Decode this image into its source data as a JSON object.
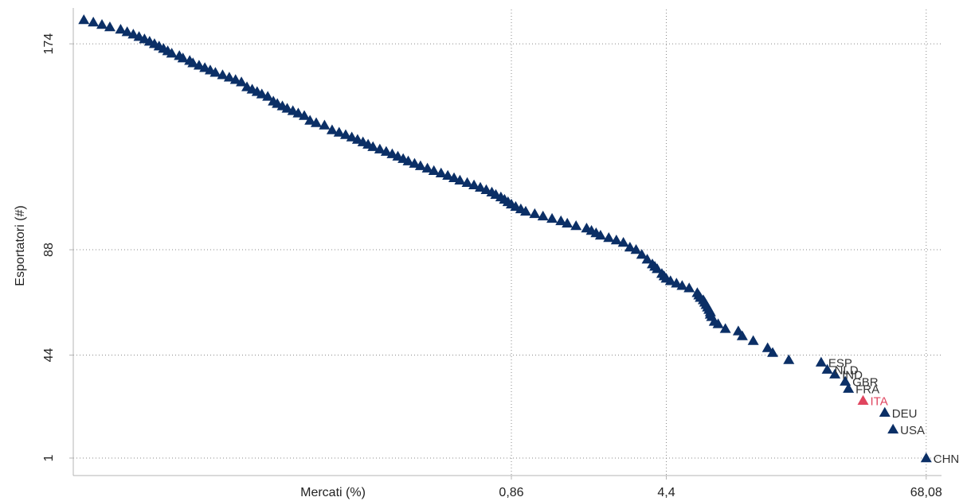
{
  "chart_data": {
    "type": "scatter",
    "title": "",
    "xlabel": "Mercati (%)",
    "ylabel": "Esportatori (#)",
    "x_scale": "log",
    "y_scale": "reversed-rank",
    "xlim": [
      0.0085,
      80
    ],
    "ylim": [
      185,
      0
    ],
    "x_ticks": [
      {
        "value": 0.86,
        "label": "0,86"
      },
      {
        "value": 4.4,
        "label": "4,4"
      },
      {
        "value": 68.08,
        "label": "68,08"
      }
    ],
    "y_ticks": [
      {
        "value": 1,
        "label": "1"
      },
      {
        "value": 44,
        "label": "44"
      },
      {
        "value": 88,
        "label": "88"
      },
      {
        "value": 174,
        "label": "174"
      }
    ],
    "grid": true,
    "marker": "triangle",
    "colors": {
      "default": "#0b2f66",
      "highlight": "#e0455f",
      "axis": "#b5b5b5",
      "grid": "#8a8a8a"
    },
    "labeled_points": [
      {
        "label": "CHN",
        "x": 68.08,
        "y": 1,
        "highlight": false
      },
      {
        "label": "USA",
        "x": 48.0,
        "y": 13,
        "highlight": false
      },
      {
        "label": "DEU",
        "x": 44.0,
        "y": 20,
        "highlight": false
      },
      {
        "label": "ITA",
        "x": 35.0,
        "y": 25,
        "highlight": true
      },
      {
        "label": "FRA",
        "x": 30.0,
        "y": 30,
        "highlight": false
      },
      {
        "label": "GBR",
        "x": 29.0,
        "y": 33,
        "highlight": false
      },
      {
        "label": "IND",
        "x": 26.0,
        "y": 36,
        "highlight": false
      },
      {
        "label": "NLD",
        "x": 24.0,
        "y": 38,
        "highlight": false
      },
      {
        "label": "ESP",
        "x": 22.5,
        "y": 41,
        "highlight": false
      }
    ],
    "other_points": [
      {
        "x": 16,
        "y": 42
      },
      {
        "x": 13.5,
        "y": 45
      },
      {
        "x": 12.8,
        "y": 47
      },
      {
        "x": 11,
        "y": 50
      },
      {
        "x": 9.8,
        "y": 52
      },
      {
        "x": 9.4,
        "y": 54
      },
      {
        "x": 8.2,
        "y": 55
      },
      {
        "x": 7.6,
        "y": 57
      },
      {
        "x": 7.3,
        "y": 58
      },
      {
        "x": 7.1,
        "y": 60
      },
      {
        "x": 7.0,
        "y": 61
      },
      {
        "x": 7.0,
        "y": 62
      },
      {
        "x": 6.9,
        "y": 63
      },
      {
        "x": 6.8,
        "y": 64
      },
      {
        "x": 6.7,
        "y": 65
      },
      {
        "x": 6.6,
        "y": 66
      },
      {
        "x": 6.5,
        "y": 67
      },
      {
        "x": 6.3,
        "y": 68
      },
      {
        "x": 6.2,
        "y": 69
      },
      {
        "x": 6.1,
        "y": 70
      },
      {
        "x": 5.6,
        "y": 72
      },
      {
        "x": 5.2,
        "y": 73
      },
      {
        "x": 4.9,
        "y": 74
      },
      {
        "x": 4.6,
        "y": 75
      },
      {
        "x": 4.4,
        "y": 76
      },
      {
        "x": 4.3,
        "y": 77
      },
      {
        "x": 4.2,
        "y": 78
      },
      {
        "x": 4.0,
        "y": 80
      },
      {
        "x": 3.9,
        "y": 81
      },
      {
        "x": 3.8,
        "y": 82
      },
      {
        "x": 3.6,
        "y": 84
      },
      {
        "x": 3.4,
        "y": 86
      },
      {
        "x": 3.2,
        "y": 88
      },
      {
        "x": 3.0,
        "y": 89
      },
      {
        "x": 2.8,
        "y": 91
      },
      {
        "x": 2.6,
        "y": 92
      },
      {
        "x": 2.4,
        "y": 93
      },
      {
        "x": 2.2,
        "y": 94
      },
      {
        "x": 2.1,
        "y": 95
      },
      {
        "x": 2.0,
        "y": 96
      },
      {
        "x": 1.9,
        "y": 97
      },
      {
        "x": 1.7,
        "y": 98
      },
      {
        "x": 1.55,
        "y": 99
      },
      {
        "x": 1.45,
        "y": 100
      },
      {
        "x": 1.32,
        "y": 101
      },
      {
        "x": 1.2,
        "y": 102
      },
      {
        "x": 1.1,
        "y": 103
      },
      {
        "x": 1.0,
        "y": 104
      },
      {
        "x": 0.95,
        "y": 105
      },
      {
        "x": 0.9,
        "y": 106
      },
      {
        "x": 0.86,
        "y": 107
      },
      {
        "x": 0.83,
        "y": 108
      },
      {
        "x": 0.8,
        "y": 109
      },
      {
        "x": 0.77,
        "y": 110
      },
      {
        "x": 0.73,
        "y": 111
      },
      {
        "x": 0.7,
        "y": 112
      },
      {
        "x": 0.66,
        "y": 113
      },
      {
        "x": 0.62,
        "y": 114
      },
      {
        "x": 0.58,
        "y": 115
      },
      {
        "x": 0.54,
        "y": 116
      },
      {
        "x": 0.5,
        "y": 117
      },
      {
        "x": 0.47,
        "y": 118
      },
      {
        "x": 0.44,
        "y": 119
      },
      {
        "x": 0.41,
        "y": 120
      },
      {
        "x": 0.38,
        "y": 121
      },
      {
        "x": 0.355,
        "y": 122
      },
      {
        "x": 0.33,
        "y": 123
      },
      {
        "x": 0.31,
        "y": 124
      },
      {
        "x": 0.29,
        "y": 125
      },
      {
        "x": 0.275,
        "y": 126
      },
      {
        "x": 0.26,
        "y": 127
      },
      {
        "x": 0.245,
        "y": 128
      },
      {
        "x": 0.23,
        "y": 129
      },
      {
        "x": 0.215,
        "y": 130
      },
      {
        "x": 0.2,
        "y": 131
      },
      {
        "x": 0.19,
        "y": 132
      },
      {
        "x": 0.18,
        "y": 133
      },
      {
        "x": 0.17,
        "y": 134
      },
      {
        "x": 0.16,
        "y": 135
      },
      {
        "x": 0.15,
        "y": 136
      },
      {
        "x": 0.14,
        "y": 137
      },
      {
        "x": 0.13,
        "y": 138
      },
      {
        "x": 0.12,
        "y": 140
      },
      {
        "x": 0.11,
        "y": 141
      },
      {
        "x": 0.103,
        "y": 142
      },
      {
        "x": 0.097,
        "y": 144
      },
      {
        "x": 0.091,
        "y": 145
      },
      {
        "x": 0.086,
        "y": 146
      },
      {
        "x": 0.081,
        "y": 147
      },
      {
        "x": 0.077,
        "y": 148
      },
      {
        "x": 0.073,
        "y": 149
      },
      {
        "x": 0.07,
        "y": 150
      },
      {
        "x": 0.066,
        "y": 152
      },
      {
        "x": 0.062,
        "y": 153
      },
      {
        "x": 0.059,
        "y": 154
      },
      {
        "x": 0.056,
        "y": 155
      },
      {
        "x": 0.053,
        "y": 156
      },
      {
        "x": 0.05,
        "y": 158
      },
      {
        "x": 0.047,
        "y": 159
      },
      {
        "x": 0.044,
        "y": 160
      },
      {
        "x": 0.041,
        "y": 161
      },
      {
        "x": 0.038,
        "y": 162
      },
      {
        "x": 0.036,
        "y": 163
      },
      {
        "x": 0.034,
        "y": 164
      },
      {
        "x": 0.032,
        "y": 165
      },
      {
        "x": 0.03,
        "y": 166
      },
      {
        "x": 0.029,
        "y": 167
      },
      {
        "x": 0.027,
        "y": 168
      },
      {
        "x": 0.026,
        "y": 169
      },
      {
        "x": 0.024,
        "y": 170
      },
      {
        "x": 0.023,
        "y": 171
      },
      {
        "x": 0.022,
        "y": 172
      },
      {
        "x": 0.021,
        "y": 173
      },
      {
        "x": 0.02,
        "y": 174
      },
      {
        "x": 0.019,
        "y": 175
      },
      {
        "x": 0.018,
        "y": 176
      },
      {
        "x": 0.017,
        "y": 177
      },
      {
        "x": 0.016,
        "y": 178
      },
      {
        "x": 0.015,
        "y": 179
      },
      {
        "x": 0.014,
        "y": 180
      },
      {
        "x": 0.0125,
        "y": 181
      },
      {
        "x": 0.0115,
        "y": 182
      },
      {
        "x": 0.0105,
        "y": 183
      },
      {
        "x": 0.0095,
        "y": 184
      }
    ]
  }
}
